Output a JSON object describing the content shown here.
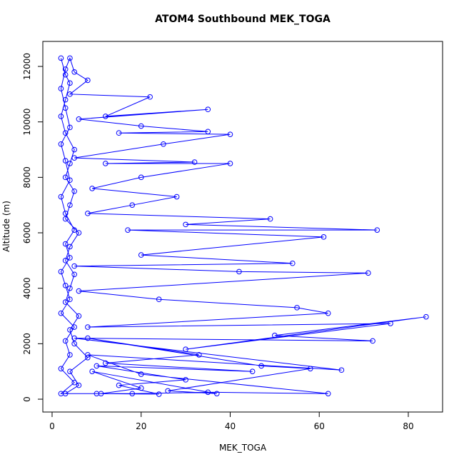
{
  "chart_data": {
    "type": "line",
    "title": "ATOM4 Southbound MEK_TOGA",
    "x_label": "MEK_TOGA",
    "y_label": "Altitude (m)",
    "color": "#0000ff",
    "xlim": [
      -2.08,
      87.7
    ],
    "ylim": [
      -463,
      12902
    ],
    "xticks": [
      0,
      20,
      40,
      60,
      80
    ],
    "yticks": [
      0,
      2000,
      4000,
      6000,
      8000,
      10000,
      12000
    ],
    "x": [
      2,
      3,
      4,
      3,
      2,
      3,
      5,
      4,
      3,
      5,
      4,
      3,
      6,
      4,
      3,
      5,
      4,
      3,
      6,
      4,
      5,
      8,
      4,
      6,
      3,
      18,
      35,
      62,
      20,
      8,
      65,
      5,
      72,
      50,
      84,
      30,
      76,
      8,
      62,
      55,
      24,
      6,
      71,
      42,
      5,
      54,
      20,
      61,
      17,
      73,
      30,
      49,
      8,
      18,
      28,
      9,
      20,
      40,
      12,
      32,
      5,
      25,
      40,
      15,
      35,
      20,
      6,
      35,
      12,
      22,
      4,
      8,
      5,
      4,
      3,
      2,
      3,
      4,
      2,
      3,
      4,
      2,
      3,
      5,
      3,
      4,
      2,
      3,
      4,
      2,
      5,
      3,
      4,
      2,
      5,
      2,
      10,
      24,
      15,
      30,
      10,
      45,
      12,
      33,
      8,
      47,
      58,
      26,
      37,
      9,
      20,
      11
    ],
    "y": [
      12300,
      11700,
      11400,
      10800,
      10200,
      9600,
      9000,
      8500,
      8000,
      7500,
      7000,
      6500,
      6000,
      5500,
      5000,
      4500,
      4000,
      3500,
      3000,
      2500,
      2000,
      1500,
      1000,
      500,
      200,
      200,
      250,
      200,
      900,
      1600,
      1050,
      2200,
      2100,
      2300,
      2970,
      1800,
      2730,
      2600,
      3100,
      3300,
      3600,
      3900,
      4550,
      4600,
      4800,
      4900,
      5200,
      5850,
      6100,
      6100,
      6300,
      6500,
      6700,
      7000,
      7300,
      7600,
      8000,
      8500,
      8500,
      8550,
      8700,
      9200,
      9550,
      9600,
      9650,
      9850,
      10100,
      10450,
      10200,
      10900,
      11000,
      11500,
      11800,
      12300,
      11900,
      11200,
      10500,
      9800,
      9200,
      8600,
      7900,
      7300,
      6700,
      6100,
      5600,
      5100,
      4600,
      4100,
      3600,
      3100,
      2600,
      2100,
      1600,
      1100,
      600,
      200,
      200,
      180,
      500,
      700,
      1200,
      1000,
      1300,
      1600,
      2200,
      1200,
      1100,
      300,
      200,
      1000,
      400,
      200
    ]
  }
}
